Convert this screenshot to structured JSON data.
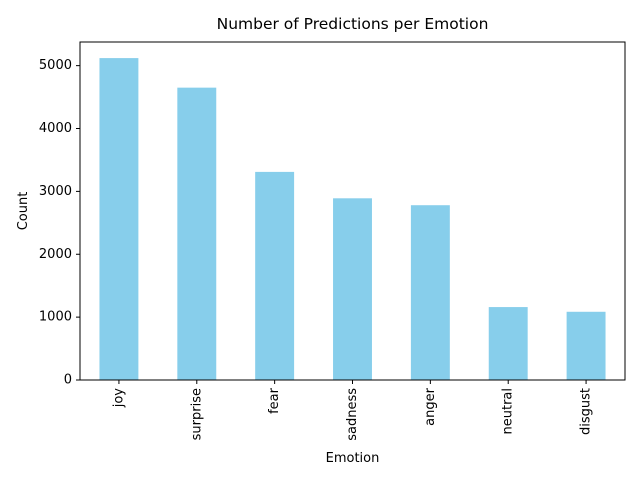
{
  "chart_data": {
    "type": "bar",
    "title": "Number of Predictions per Emotion",
    "xlabel": "Emotion",
    "ylabel": "Count",
    "categories": [
      "joy",
      "surprise",
      "fear",
      "sadness",
      "anger",
      "neutral",
      "disgust"
    ],
    "values": [
      5120,
      4650,
      3310,
      2890,
      2780,
      1160,
      1085
    ],
    "ylim": [
      0,
      5376
    ],
    "yticks": [
      0,
      1000,
      2000,
      3000,
      4000,
      5000
    ],
    "bar_color": "#87ceeb",
    "grid": false,
    "legend": false,
    "xtick_rotation": "vertical"
  }
}
